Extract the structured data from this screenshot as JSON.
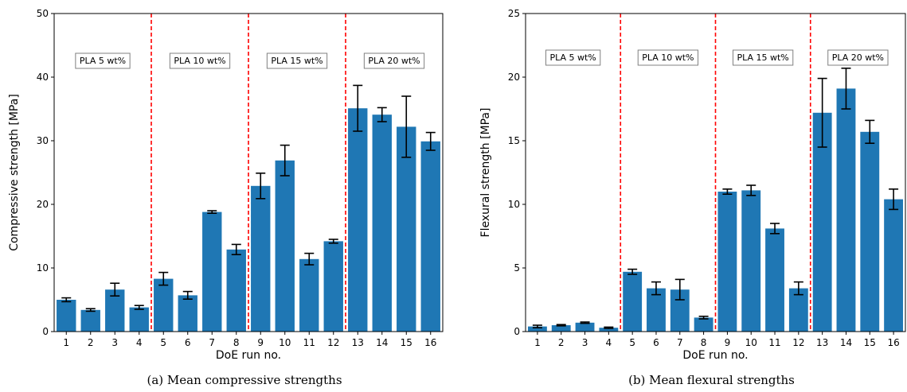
{
  "chart_data": [
    {
      "type": "bar",
      "xlabel": "DoE run no.",
      "ylabel": "Compressive strength [MPa]",
      "caption": "(a) Mean compressive strengths",
      "ylim": [
        0,
        50
      ],
      "yticks": [
        0,
        10,
        20,
        30,
        40,
        50
      ],
      "categories": [
        "1",
        "2",
        "3",
        "4",
        "5",
        "6",
        "7",
        "8",
        "9",
        "10",
        "11",
        "12",
        "13",
        "14",
        "15",
        "16"
      ],
      "values": [
        5.0,
        3.4,
        6.6,
        3.8,
        8.3,
        5.7,
        18.8,
        12.9,
        22.9,
        26.9,
        11.4,
        14.2,
        35.1,
        34.1,
        32.2,
        29.9
      ],
      "errors": [
        0.3,
        0.2,
        1.0,
        0.3,
        1.0,
        0.6,
        0.2,
        0.8,
        2.0,
        2.4,
        0.9,
        0.3,
        3.6,
        1.1,
        4.8,
        1.4
      ],
      "color": "#1f77b4",
      "dividers_after": [
        4,
        8,
        12
      ],
      "divider_color": "#ff0000",
      "group_labels": [
        "PLA 5 wt%",
        "PLA 10 wt%",
        "PLA 15 wt%",
        "PLA 20 wt%"
      ],
      "group_label_y": 42.5
    },
    {
      "type": "bar",
      "xlabel": "DoE run no.",
      "ylabel": "Flexural strength [MPa]",
      "caption": "(b) Mean flexural strengths",
      "ylim": [
        0,
        25
      ],
      "yticks": [
        0,
        5,
        10,
        15,
        20,
        25
      ],
      "categories": [
        "1",
        "2",
        "3",
        "4",
        "5",
        "6",
        "7",
        "8",
        "9",
        "10",
        "11",
        "12",
        "13",
        "14",
        "15",
        "16"
      ],
      "values": [
        0.4,
        0.5,
        0.7,
        0.3,
        4.7,
        3.4,
        3.3,
        1.1,
        11.0,
        11.1,
        8.1,
        3.4,
        17.2,
        19.1,
        15.7,
        10.4
      ],
      "errors": [
        0.1,
        0.05,
        0.05,
        0.05,
        0.2,
        0.5,
        0.8,
        0.1,
        0.2,
        0.4,
        0.4,
        0.5,
        2.7,
        1.6,
        0.9,
        0.8
      ],
      "color": "#1f77b4",
      "dividers_after": [
        4,
        8,
        12
      ],
      "divider_color": "#ff0000",
      "group_labels": [
        "PLA 5 wt%",
        "PLA 10 wt%",
        "PLA 15 wt%",
        "PLA 20 wt%"
      ],
      "group_label_y": 21.5
    }
  ]
}
